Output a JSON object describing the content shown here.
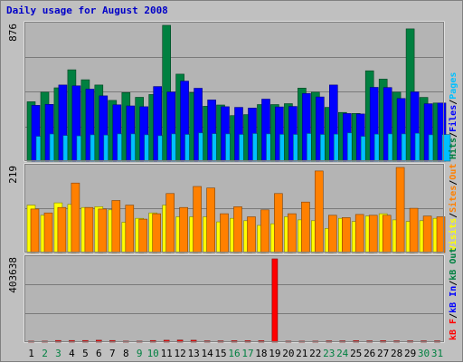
{
  "title": "Daily usage for August 2008",
  "chart_data": {
    "type": "bar",
    "title": "Daily usage for August 2008",
    "categories": [
      "1",
      "2",
      "3",
      "4",
      "5",
      "6",
      "7",
      "8",
      "9",
      "10",
      "11",
      "12",
      "13",
      "14",
      "15",
      "16",
      "17",
      "18",
      "19",
      "20",
      "21",
      "22",
      "23",
      "24",
      "25",
      "26",
      "27",
      "28",
      "29",
      "30",
      "31"
    ],
    "weekend_days": [
      "2",
      "3",
      "9",
      "10",
      "16",
      "17",
      "23",
      "24",
      "30",
      "31"
    ],
    "panels": [
      {
        "name": "requests",
        "ymax_label": "876",
        "ylim": [
          0,
          876
        ],
        "series": [
          {
            "name": "Hits",
            "color": "#008040",
            "values": [
              383,
              445,
              473,
              589,
              525,
              491,
              392,
              442,
              412,
              430,
              876,
              561,
              442,
              354,
              362,
              294,
              300,
              365,
              365,
              371,
              471,
              445,
              347,
              314,
              308,
              583,
              529,
              445,
              853,
              411,
              375
            ]
          },
          {
            "name": "Files",
            "color": "#0000ff",
            "values": [
              360,
              366,
              491,
              486,
              464,
              421,
              363,
              356,
              351,
              481,
              446,
              516,
              470,
              395,
              351,
              347,
              342,
              400,
              350,
              353,
              436,
              414,
              491,
              307,
              304,
              476,
              475,
              404,
              447,
              370,
              375
            ]
          },
          {
            "name": "Pages",
            "color": "#00c0ff",
            "values": [
              160,
              175,
              165,
              163,
              170,
              168,
              176,
              176,
              170,
              164,
              176,
              172,
              182,
              177,
              176,
              172,
              178,
              176,
              173,
              172,
              178,
              172,
              174,
              182,
              160,
              174,
              176,
              176,
              180,
              170,
              171
            ]
          }
        ],
        "side_labels": [
          {
            "text": "Hits",
            "color": "#008040"
          },
          {
            "text": "Files",
            "color": "#0000ff"
          },
          {
            "text": "Pages",
            "color": "#00c0ff"
          }
        ]
      },
      {
        "name": "sites",
        "ymax_label": "219",
        "ylim": [
          0,
          219
        ],
        "series": [
          {
            "name": "Visits",
            "color": "#ffff00",
            "values": [
              122,
              96,
              128,
              124,
              116,
              118,
              110,
              78,
              88,
              102,
              122,
              92,
              92,
              92,
              79,
              88,
              82,
              70,
              74,
              92,
              84,
              82,
              62,
              88,
              80,
              94,
              100,
              84,
              80,
              82,
              88
            ]
          },
          {
            "name": "Sites",
            "color": "#ff8000",
            "values": [
              112,
              102,
              116,
              179,
              116,
              112,
              134,
              122,
              86,
              100,
              152,
              116,
              170,
              166,
              100,
              118,
              92,
              110,
              152,
              100,
              130,
              210,
              96,
              90,
              98,
              96,
              96,
              219,
              114,
              94,
              92
            ]
          }
        ],
        "side_labels": [
          {
            "text": "Visits",
            "color": "#ffff00"
          },
          {
            "text": "Sites",
            "color": "#ff8000"
          },
          {
            "text": "Out",
            "color": "#ff8000"
          }
        ]
      },
      {
        "name": "traffic",
        "ymax_label": "403638",
        "ylim": [
          0,
          403638
        ],
        "series": [
          {
            "name": "kB F",
            "color": "#ff0000",
            "values": [
              5000,
              5000,
              8000,
              8000,
              8000,
              9000,
              8000,
              5000,
              5000,
              8000,
              9000,
              10000,
              9000,
              6000,
              6000,
              7000,
              7000,
              7000,
              403638,
              5000,
              5000,
              5000,
              6000,
              6000,
              7000,
              6000,
              7000,
              6000,
              6000,
              6000,
              6000
            ]
          }
        ],
        "side_labels": [
          {
            "text": "kB F",
            "color": "#ff0000"
          },
          {
            "text": "kB In",
            "color": "#0000ff"
          },
          {
            "text": "kB Out",
            "color": "#008040"
          }
        ]
      }
    ]
  }
}
